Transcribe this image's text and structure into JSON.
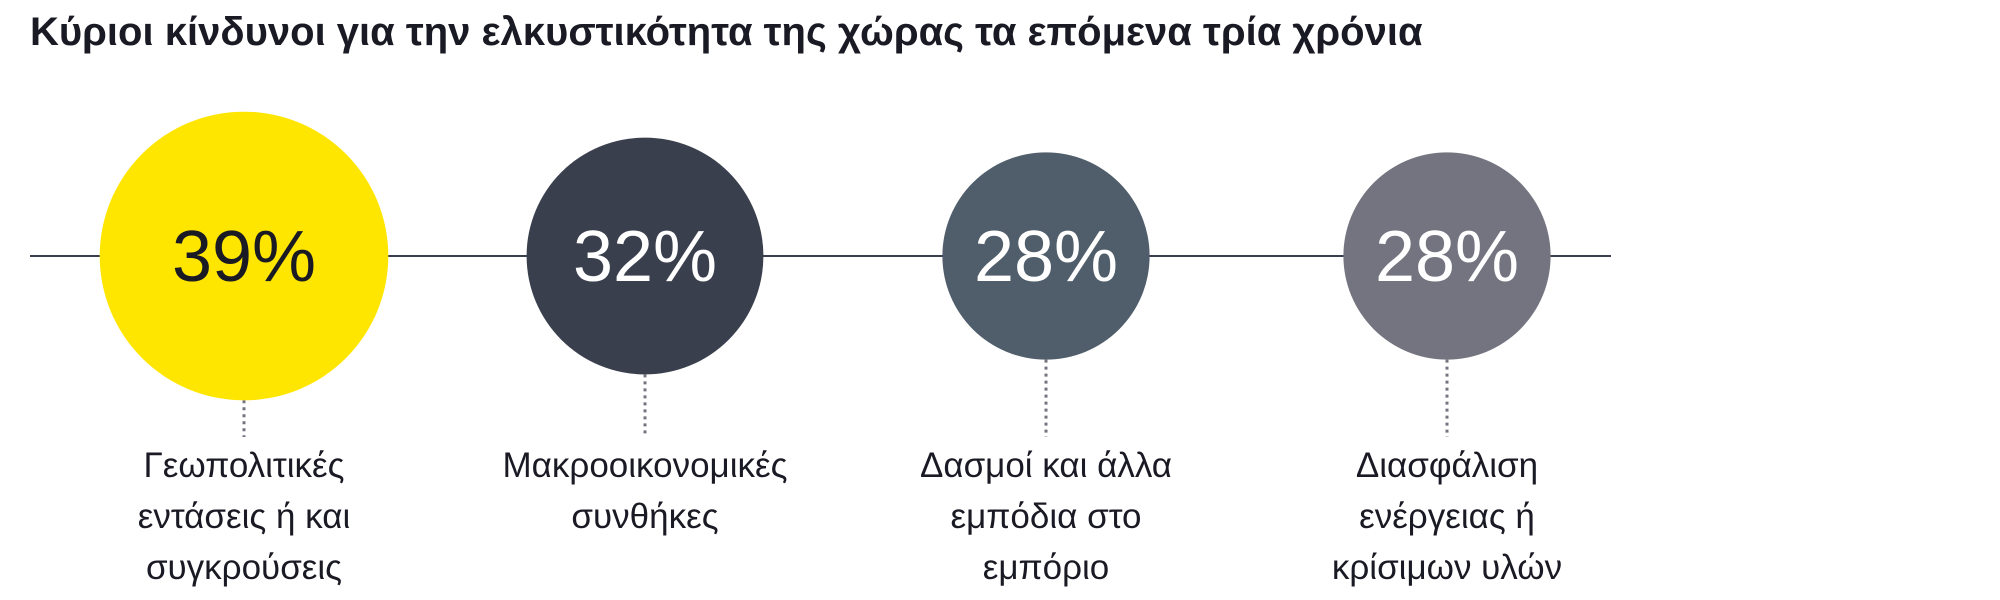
{
  "chart_data": {
    "type": "bubble",
    "title": "Κύριοι κίνδυνοι για την ελκυστικότητα της χώρας τα επόμενα τρία χρόνια",
    "categories": [
      "Γεωπολιτικές εντάσεις ή και συγκρούσεις",
      "Μακροοικονομικές συνθήκες",
      "Δασμοί και άλλα εμπόδια στο εμπόριο",
      "Διασφάλιση ενέργειας ή κρίσιμων υλών"
    ],
    "values": [
      39,
      32,
      28,
      28
    ],
    "value_labels": [
      "39%",
      "32%",
      "28%",
      "28%"
    ],
    "colors": [
      "#ffe600",
      "#3a3f4d",
      "#505d6a",
      "#747480"
    ],
    "label_colors": [
      "#1a1a24",
      "#ffffff",
      "#ffffff",
      "#ffffff"
    ]
  }
}
